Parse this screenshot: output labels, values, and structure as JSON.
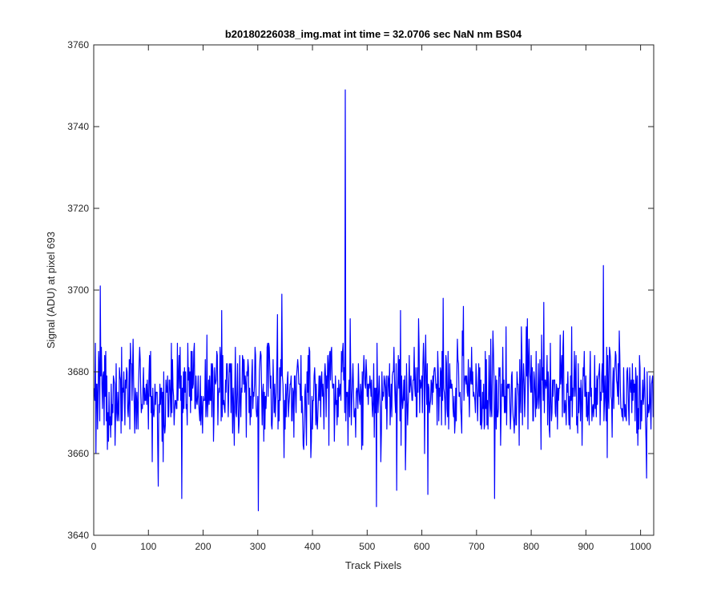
{
  "chart_data": {
    "type": "line",
    "title": "b20180226038_img.mat int time = 32.0706 sec  NaN nm BS04",
    "xlabel": "Track Pixels",
    "ylabel": "Signal (ADU) at pixel 693",
    "xlim": [
      0,
      1024
    ],
    "ylim": [
      3640,
      3760
    ],
    "xticks": [
      0,
      100,
      200,
      300,
      400,
      500,
      600,
      700,
      800,
      900,
      1000
    ],
    "yticks": [
      3640,
      3660,
      3680,
      3700,
      3720,
      3740,
      3760
    ],
    "xtick_labels": [
      "0",
      "100",
      "200",
      "300",
      "400",
      "500",
      "600",
      "700",
      "800",
      "900",
      "1000"
    ],
    "ytick_labels": [
      "3640",
      "3660",
      "3680",
      "3700",
      "3720",
      "3740",
      "3760"
    ],
    "grid": false,
    "line_color": "#0000ff",
    "series": [
      {
        "n_points": 1024,
        "baseline": 3675,
        "noise_range": [
          3646,
          3706
        ],
        "spikes": [
          {
            "x": 459,
            "y": 3749
          },
          {
            "x": 11,
            "y": 3701
          },
          {
            "x": 931,
            "y": 3706
          },
          {
            "x": 300,
            "y": 3646
          },
          {
            "x": 516,
            "y": 3647
          },
          {
            "x": 160,
            "y": 3649
          },
          {
            "x": 732,
            "y": 3649
          },
          {
            "x": 117,
            "y": 3652
          },
          {
            "x": 1010,
            "y": 3654
          },
          {
            "x": 553,
            "y": 3651
          },
          {
            "x": 610,
            "y": 3650
          },
          {
            "x": 822,
            "y": 3697
          },
          {
            "x": 675,
            "y": 3696
          },
          {
            "x": 560,
            "y": 3695
          },
          {
            "x": 343,
            "y": 3699
          },
          {
            "x": 638,
            "y": 3698
          }
        ]
      }
    ]
  },
  "colors": {
    "line": "#0000ff",
    "axes": "#262626",
    "background": "#ffffff"
  }
}
